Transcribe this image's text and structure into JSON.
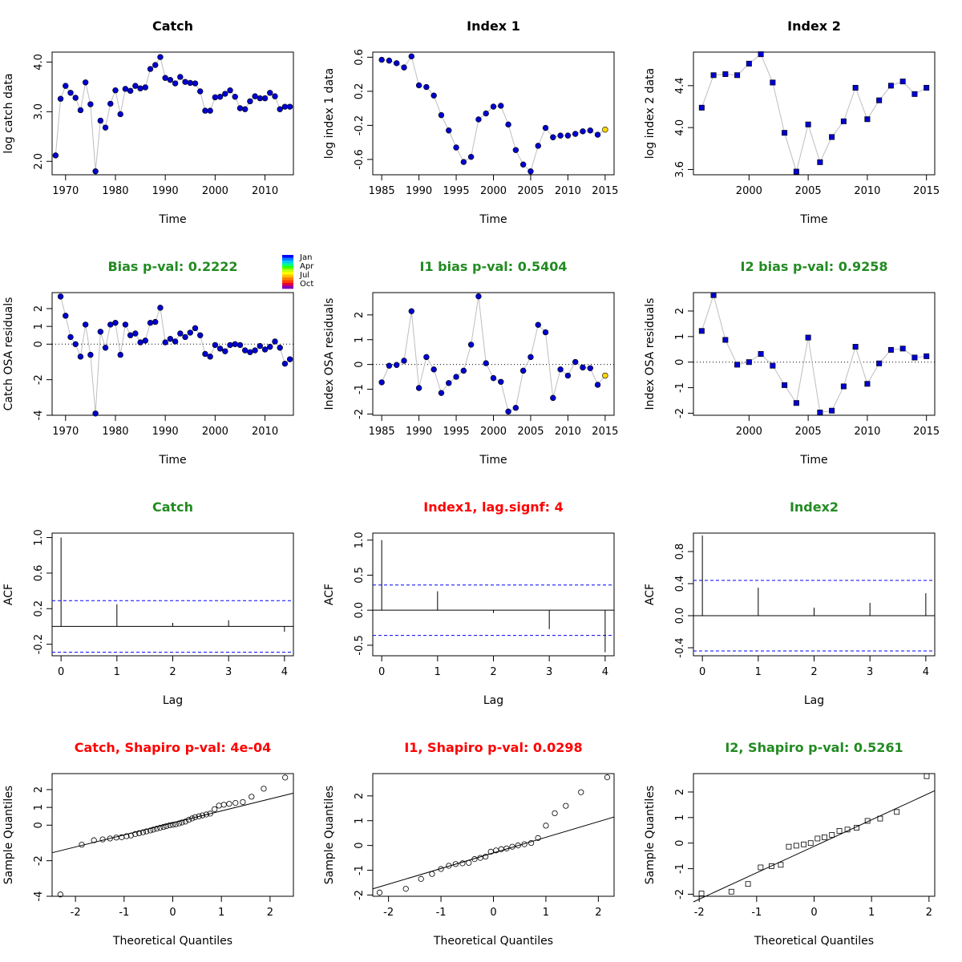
{
  "colors": {
    "point": "#0000cd",
    "point_outline": "#000000",
    "pred": "#ffd700",
    "connector": "#bebebe",
    "ok_title": "#228b22",
    "bad_title": "#ff0000",
    "ci_line": "#0000ff"
  },
  "month_legend": {
    "labels": [
      "Jan",
      "Apr",
      "Jul",
      "Oct"
    ]
  },
  "chart_data": [
    {
      "type": "scatter",
      "marker": "circle",
      "connect": true,
      "title": "Catch",
      "title_color": "ok",
      "xlabel": "Time",
      "ylabel": "log catch data",
      "xlim": [
        1967.3,
        2015.7
      ],
      "ylim": [
        1.73,
        4.2
      ],
      "xticks": [
        1970,
        1980,
        1990,
        2000,
        2010
      ],
      "yticks": [
        2.0,
        3.0,
        4.0
      ],
      "ytick_labels": [
        "2.0",
        "3.0",
        "4.0"
      ],
      "x": [
        1968,
        1969,
        1970,
        1971,
        1972,
        1973,
        1974,
        1975,
        1976,
        1977,
        1978,
        1979,
        1980,
        1981,
        1982,
        1983,
        1984,
        1985,
        1986,
        1987,
        1988,
        1989,
        1990,
        1991,
        1992,
        1993,
        1994,
        1995,
        1996,
        1997,
        1998,
        1999,
        2000,
        2001,
        2002,
        2003,
        2004,
        2005,
        2006,
        2007,
        2008,
        2009,
        2010,
        2011,
        2012,
        2013,
        2014,
        2015
      ],
      "y": [
        2.12,
        3.26,
        3.52,
        3.38,
        3.28,
        3.03,
        3.59,
        3.15,
        1.8,
        2.82,
        2.68,
        3.16,
        3.43,
        2.95,
        3.46,
        3.42,
        3.52,
        3.47,
        3.49,
        3.86,
        3.94,
        4.1,
        3.68,
        3.64,
        3.57,
        3.7,
        3.6,
        3.58,
        3.57,
        3.41,
        3.02,
        3.02,
        3.29,
        3.3,
        3.36,
        3.43,
        3.3,
        3.07,
        3.05,
        3.21,
        3.31,
        3.27,
        3.27,
        3.38,
        3.31,
        3.05,
        3.1,
        3.1
      ]
    },
    {
      "type": "scatter",
      "marker": "circle",
      "connect": true,
      "title": "Index 1",
      "title_color": "ok",
      "xlabel": "Time",
      "ylabel": "log index 1 data",
      "xlim": [
        1983.8,
        2016.2
      ],
      "ylim": [
        -0.78,
        0.66
      ],
      "xticks": [
        1985,
        1990,
        1995,
        2000,
        2005,
        2010,
        2015
      ],
      "yticks": [
        -0.6,
        -0.2,
        0.2,
        0.6
      ],
      "ytick_labels": [
        "-0.6",
        "-0.2",
        "0.2",
        "0.6"
      ],
      "x": [
        1985,
        1986,
        1987,
        1988,
        1989,
        1990,
        1991,
        1992,
        1993,
        1994,
        1995,
        1996,
        1997,
        1998,
        1999,
        2000,
        2001,
        2002,
        2003,
        2004,
        2005,
        2006,
        2007,
        2008,
        2009,
        2010,
        2011,
        2012,
        2013,
        2014,
        2015
      ],
      "y": [
        0.57,
        0.56,
        0.53,
        0.48,
        0.61,
        0.27,
        0.25,
        0.15,
        -0.08,
        -0.26,
        -0.46,
        -0.63,
        -0.57,
        -0.13,
        -0.06,
        0.02,
        0.03,
        -0.19,
        -0.49,
        -0.66,
        -0.74,
        -0.44,
        -0.23,
        -0.34,
        -0.32,
        -0.32,
        -0.3,
        -0.27,
        -0.26,
        -0.31,
        -0.25
      ],
      "predicted": [
        false,
        false,
        false,
        false,
        false,
        false,
        false,
        false,
        false,
        false,
        false,
        false,
        false,
        false,
        false,
        false,
        false,
        false,
        false,
        false,
        false,
        false,
        false,
        false,
        false,
        false,
        false,
        false,
        false,
        false,
        true
      ]
    },
    {
      "type": "scatter",
      "marker": "square",
      "connect": true,
      "title": "Index 2",
      "title_color": "ok",
      "xlabel": "Time",
      "ylabel": "log index 2 data",
      "xlim": [
        1995.3,
        2015.7
      ],
      "ylim": [
        3.55,
        4.72
      ],
      "xticks": [
        2000,
        2005,
        2010,
        2015
      ],
      "yticks": [
        3.6,
        4.0,
        4.4
      ],
      "ytick_labels": [
        "3.6",
        "4.0",
        "4.4"
      ],
      "x": [
        1996,
        1997,
        1998,
        1999,
        2000,
        2001,
        2002,
        2003,
        2004,
        2005,
        2006,
        2007,
        2008,
        2009,
        2010,
        2011,
        2012,
        2013,
        2014,
        2015
      ],
      "y": [
        4.19,
        4.5,
        4.51,
        4.5,
        4.61,
        4.7,
        4.43,
        3.95,
        3.58,
        4.03,
        3.67,
        3.91,
        4.06,
        4.38,
        4.08,
        4.26,
        4.4,
        4.44,
        4.32,
        4.38
      ]
    },
    {
      "type": "scatter",
      "marker": "circle",
      "connect": true,
      "hline": 0,
      "title": "Bias p-val: 0.2222",
      "title_color": "ok",
      "xlabel": "Time",
      "ylabel": "Catch OSA residuals",
      "xlim": [
        1967.3,
        2015.7
      ],
      "ylim": [
        -4.0,
        2.9
      ],
      "xticks": [
        1970,
        1980,
        1990,
        2000,
        2010
      ],
      "yticks": [
        -4,
        -2,
        0,
        1,
        2
      ],
      "ytick_labels": [
        "-4",
        "-2",
        "0",
        "1",
        "2"
      ],
      "x": [
        1969,
        1970,
        1971,
        1972,
        1973,
        1974,
        1975,
        1976,
        1977,
        1978,
        1979,
        1980,
        1981,
        1982,
        1983,
        1984,
        1985,
        1986,
        1987,
        1988,
        1989,
        1990,
        1991,
        1992,
        1993,
        1994,
        1995,
        1996,
        1997,
        1998,
        1999,
        2000,
        2001,
        2002,
        2003,
        2004,
        2005,
        2006,
        2007,
        2008,
        2009,
        2010,
        2011,
        2012,
        2013,
        2014,
        2015
      ],
      "y": [
        2.68,
        1.6,
        0.4,
        0.0,
        -0.7,
        1.1,
        -0.6,
        -3.9,
        0.7,
        -0.2,
        1.1,
        1.2,
        -0.6,
        1.1,
        0.5,
        0.6,
        0.1,
        0.2,
        1.2,
        1.25,
        2.05,
        0.1,
        0.3,
        0.15,
        0.6,
        0.4,
        0.65,
        0.9,
        0.5,
        -0.55,
        -0.7,
        -0.05,
        -0.25,
        -0.4,
        -0.05,
        0.0,
        -0.05,
        -0.35,
        -0.45,
        -0.35,
        -0.1,
        -0.3,
        -0.15,
        0.15,
        -0.2,
        -1.1,
        -0.85
      ]
    },
    {
      "type": "scatter",
      "marker": "circle",
      "connect": true,
      "hline": 0,
      "title": "I1 bias p-val: 0.5404",
      "title_color": "ok",
      "xlabel": "Time",
      "ylabel": "Index OSA residuals",
      "xlim": [
        1983.8,
        2016.2
      ],
      "ylim": [
        -2.05,
        2.9
      ],
      "xticks": [
        1985,
        1990,
        1995,
        2000,
        2005,
        2010,
        2015
      ],
      "yticks": [
        -2,
        -1,
        0,
        1,
        2
      ],
      "ytick_labels": [
        "-2",
        "-1",
        "0",
        "1",
        "2"
      ],
      "x": [
        1985,
        1986,
        1987,
        1988,
        1989,
        1990,
        1991,
        1992,
        1993,
        1994,
        1995,
        1996,
        1997,
        1998,
        1999,
        2000,
        2001,
        2002,
        2003,
        2004,
        2005,
        2006,
        2007,
        2008,
        2009,
        2010,
        2011,
        2012,
        2013,
        2014,
        2015
      ],
      "y": [
        -0.72,
        -0.05,
        -0.02,
        0.15,
        2.15,
        -0.95,
        0.3,
        -0.2,
        -1.15,
        -0.75,
        -0.5,
        -0.25,
        0.8,
        2.75,
        0.05,
        -0.55,
        -0.7,
        -1.9,
        -1.75,
        -0.25,
        0.3,
        1.6,
        1.3,
        -1.35,
        -0.2,
        -0.45,
        0.1,
        -0.12,
        -0.15,
        -0.82,
        -0.45
      ],
      "predicted": [
        false,
        false,
        false,
        false,
        false,
        false,
        false,
        false,
        false,
        false,
        false,
        false,
        false,
        false,
        false,
        false,
        false,
        false,
        false,
        false,
        false,
        false,
        false,
        false,
        false,
        false,
        false,
        false,
        false,
        false,
        true
      ]
    },
    {
      "type": "scatter",
      "marker": "square",
      "connect": true,
      "hline": 0,
      "title": "I2 bias p-val: 0.9258",
      "title_color": "ok",
      "xlabel": "Time",
      "ylabel": "Index OSA residuals",
      "xlim": [
        1995.3,
        2015.7
      ],
      "ylim": [
        -2.08,
        2.72
      ],
      "xticks": [
        2000,
        2005,
        2010,
        2015
      ],
      "yticks": [
        -2,
        -1,
        0,
        1,
        2
      ],
      "ytick_labels": [
        "-2",
        "-1",
        "0",
        "1",
        "2"
      ],
      "x": [
        1996,
        1997,
        1998,
        1999,
        2000,
        2001,
        2002,
        2003,
        2004,
        2005,
        2006,
        2007,
        2008,
        2009,
        2010,
        2011,
        2012,
        2013,
        2014,
        2015
      ],
      "y": [
        1.22,
        2.62,
        0.87,
        -0.1,
        0.0,
        0.32,
        -0.14,
        -0.9,
        -1.6,
        0.96,
        -1.97,
        -1.9,
        -0.95,
        0.6,
        -0.85,
        -0.05,
        0.48,
        0.53,
        0.18,
        0.23
      ]
    },
    {
      "type": "bar",
      "subtype": "acf",
      "title": "Catch",
      "title_color": "ok",
      "xlabel": "Lag",
      "ylabel": "ACF",
      "xlim": [
        -0.16,
        4.16
      ],
      "ylim": [
        -0.33,
        1.05
      ],
      "xticks": [
        0,
        1,
        2,
        3,
        4
      ],
      "yticks": [
        -0.2,
        0.2,
        0.6,
        1.0
      ],
      "ytick_labels": [
        "-0.2",
        "0.2",
        "0.6",
        "1.0"
      ],
      "x": [
        0,
        1,
        2,
        3,
        4
      ],
      "y": [
        1.0,
        0.25,
        0.04,
        0.07,
        -0.06
      ],
      "ci": 0.29
    },
    {
      "type": "bar",
      "subtype": "acf",
      "title": "Index1, lag.signf: 4",
      "title_color": "bad",
      "xlabel": "Lag",
      "ylabel": "ACF",
      "xlim": [
        -0.16,
        4.16
      ],
      "ylim": [
        -0.65,
        1.1
      ],
      "xticks": [
        0,
        1,
        2,
        3,
        4
      ],
      "yticks": [
        -0.5,
        0.0,
        0.5,
        1.0
      ],
      "ytick_labels": [
        "-0.5",
        "0.0",
        "0.5",
        "1.0"
      ],
      "x": [
        0,
        1,
        2,
        3,
        4
      ],
      "y": [
        1.0,
        0.27,
        -0.04,
        -0.27,
        -0.6
      ],
      "ci": 0.36
    },
    {
      "type": "bar",
      "subtype": "acf",
      "title": "Index2",
      "title_color": "ok",
      "xlabel": "Lag",
      "ylabel": "ACF",
      "xlim": [
        -0.16,
        4.16
      ],
      "ylim": [
        -0.5,
        1.03
      ],
      "xticks": [
        0,
        1,
        2,
        3,
        4
      ],
      "yticks": [
        -0.4,
        0.0,
        0.4,
        0.8
      ],
      "ytick_labels": [
        "-0.4",
        "0.0",
        "0.4",
        "0.8"
      ],
      "x": [
        0,
        1,
        2,
        3,
        4
      ],
      "y": [
        1.0,
        0.35,
        0.1,
        0.16,
        0.28
      ],
      "ci": 0.44
    },
    {
      "type": "scatter",
      "subtype": "qq",
      "marker": "open-circle",
      "connect": false,
      "title": "Catch, Shapiro p-val: 4e-04",
      "title_color": "bad",
      "xlabel": "Theoretical Quantiles",
      "ylabel": "Sample Quantiles",
      "xlim": [
        -2.48,
        2.48
      ],
      "ylim": [
        -4.0,
        2.9
      ],
      "xticks": [
        -2,
        -1,
        0,
        1,
        2
      ],
      "yticks": [
        -4,
        -2,
        0,
        1,
        2
      ],
      "ytick_labels": [
        "-4",
        "-2",
        "0",
        "1",
        "2"
      ],
      "x": [
        -2.31,
        -1.87,
        -1.62,
        -1.44,
        -1.29,
        -1.16,
        -1.05,
        -0.95,
        -0.86,
        -0.77,
        -0.69,
        -0.61,
        -0.54,
        -0.46,
        -0.4,
        -0.33,
        -0.26,
        -0.19,
        -0.13,
        -0.06,
        0.0,
        0.06,
        0.13,
        0.19,
        0.26,
        0.33,
        0.4,
        0.46,
        0.54,
        0.61,
        0.69,
        0.77,
        0.86,
        0.95,
        1.05,
        1.16,
        1.29,
        1.44,
        1.62,
        1.87,
        2.31
      ],
      "y": [
        -3.9,
        -1.1,
        -0.85,
        -0.8,
        -0.75,
        -0.7,
        -0.68,
        -0.62,
        -0.58,
        -0.5,
        -0.45,
        -0.4,
        -0.35,
        -0.3,
        -0.25,
        -0.2,
        -0.15,
        -0.1,
        -0.05,
        0.0,
        0.02,
        0.05,
        0.1,
        0.15,
        0.2,
        0.3,
        0.38,
        0.45,
        0.5,
        0.55,
        0.6,
        0.65,
        0.9,
        1.1,
        1.15,
        1.2,
        1.25,
        1.3,
        1.6,
        2.05,
        2.68
      ],
      "refline": [
        [
          -2.48,
          -1.55
        ],
        [
          2.48,
          1.8
        ]
      ]
    },
    {
      "type": "scatter",
      "subtype": "qq",
      "marker": "open-circle",
      "connect": false,
      "title": "I1, Shapiro p-val: 0.0298",
      "title_color": "bad",
      "xlabel": "Theoretical Quantiles",
      "ylabel": "Sample Quantiles",
      "xlim": [
        -2.3,
        2.3
      ],
      "ylim": [
        -2.05,
        2.9
      ],
      "xticks": [
        -2,
        -1,
        0,
        1,
        2
      ],
      "yticks": [
        -2,
        -1,
        0,
        1,
        2
      ],
      "ytick_labels": [
        "-2",
        "-1",
        "0",
        "1",
        "2"
      ],
      "x": [
        -2.17,
        -1.67,
        -1.38,
        -1.17,
        -1.0,
        -0.85,
        -0.72,
        -0.59,
        -0.47,
        -0.36,
        -0.25,
        -0.15,
        -0.05,
        0.05,
        0.15,
        0.25,
        0.36,
        0.47,
        0.59,
        0.72,
        0.85,
        1.0,
        1.17,
        1.38,
        1.67,
        2.17
      ],
      "y": [
        -1.9,
        -1.75,
        -1.35,
        -1.15,
        -0.95,
        -0.82,
        -0.75,
        -0.72,
        -0.7,
        -0.55,
        -0.5,
        -0.45,
        -0.25,
        -0.2,
        -0.15,
        -0.12,
        -0.05,
        0.0,
        0.05,
        0.1,
        0.3,
        0.8,
        1.3,
        1.6,
        2.15,
        2.75
      ],
      "refline": [
        [
          -2.3,
          -1.75
        ],
        [
          2.3,
          1.15
        ]
      ]
    },
    {
      "type": "scatter",
      "subtype": "qq",
      "marker": "open-square",
      "connect": false,
      "title": "I2, Shapiro p-val: 0.5261",
      "title_color": "ok",
      "xlabel": "Theoretical Quantiles",
      "ylabel": "Sample Quantiles",
      "xlim": [
        -2.1,
        2.1
      ],
      "ylim": [
        -2.08,
        2.72
      ],
      "xticks": [
        -2,
        -1,
        0,
        1,
        2
      ],
      "yticks": [
        -2,
        -1,
        0,
        1,
        2
      ],
      "ytick_labels": [
        "-2",
        "-1",
        "0",
        "1",
        "2"
      ],
      "x": [
        -1.96,
        -1.44,
        -1.15,
        -0.93,
        -0.74,
        -0.58,
        -0.44,
        -0.31,
        -0.18,
        -0.06,
        0.06,
        0.18,
        0.31,
        0.44,
        0.58,
        0.74,
        0.93,
        1.15,
        1.44,
        1.96
      ],
      "y": [
        -1.97,
        -1.9,
        -1.6,
        -0.95,
        -0.9,
        -0.85,
        -0.14,
        -0.1,
        -0.05,
        0.0,
        0.18,
        0.23,
        0.32,
        0.48,
        0.53,
        0.6,
        0.87,
        0.96,
        1.22,
        2.62
      ],
      "refline": [
        [
          -2.1,
          -2.3
        ],
        [
          2.1,
          2.05
        ]
      ]
    }
  ]
}
